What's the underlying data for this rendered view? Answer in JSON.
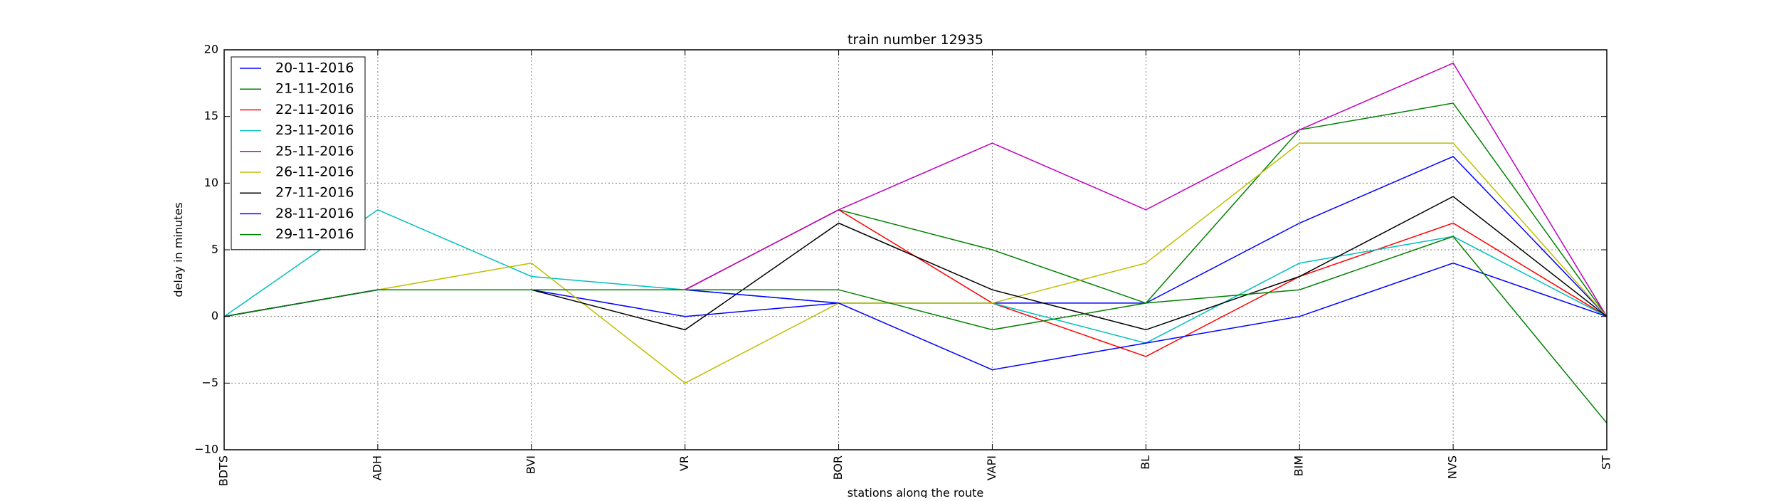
{
  "chart_data": {
    "type": "line",
    "title": "train number 12935",
    "xlabel": "stations along the route",
    "ylabel": "delay in minutes",
    "x": [
      "BDTS",
      "ADH",
      "BVI",
      "VR",
      "BOR",
      "VAPI",
      "BL",
      "BIM",
      "NVS",
      "ST"
    ],
    "ylim": [
      -10,
      20
    ],
    "yticks": [
      -10,
      -5,
      0,
      5,
      10,
      15,
      20
    ],
    "yticklabels": [
      "−10",
      "−5",
      "0",
      "5",
      "10",
      "15",
      "20"
    ],
    "grid": true,
    "legend": "top-left",
    "series": [
      {
        "name": "20-11-2016",
        "color": "#0000ff",
        "values": [
          0,
          2,
          2,
          0,
          1,
          1,
          1,
          7,
          12,
          0
        ]
      },
      {
        "name": "21-11-2016",
        "color": "#008000",
        "values": [
          0,
          2,
          2,
          2,
          8,
          5,
          1,
          14,
          16,
          0
        ]
      },
      {
        "name": "22-11-2016",
        "color": "#ff0000",
        "values": [
          0,
          2,
          2,
          2,
          8,
          1,
          -3,
          3,
          7,
          0
        ]
      },
      {
        "name": "23-11-2016",
        "color": "#00bfbf",
        "values": [
          0,
          8,
          3,
          2,
          1,
          1,
          -2,
          4,
          6,
          0
        ]
      },
      {
        "name": "25-11-2016",
        "color": "#bf00bf",
        "values": [
          0,
          2,
          2,
          2,
          8,
          13,
          8,
          14,
          19,
          0
        ]
      },
      {
        "name": "26-11-2016",
        "color": "#bfbf00",
        "values": [
          0,
          2,
          4,
          -5,
          1,
          1,
          4,
          13,
          13,
          0
        ]
      },
      {
        "name": "27-11-2016",
        "color": "#000000",
        "values": [
          0,
          2,
          2,
          -1,
          7,
          2,
          -1,
          3,
          9,
          0
        ]
      },
      {
        "name": "28-11-2016",
        "color": "#0000ff",
        "values": [
          0,
          2,
          2,
          2,
          1,
          -4,
          -2,
          0,
          4,
          0
        ]
      },
      {
        "name": "29-11-2016",
        "color": "#008000",
        "values": [
          0,
          2,
          2,
          2,
          2,
          -1,
          1,
          2,
          6,
          -8
        ]
      }
    ]
  }
}
